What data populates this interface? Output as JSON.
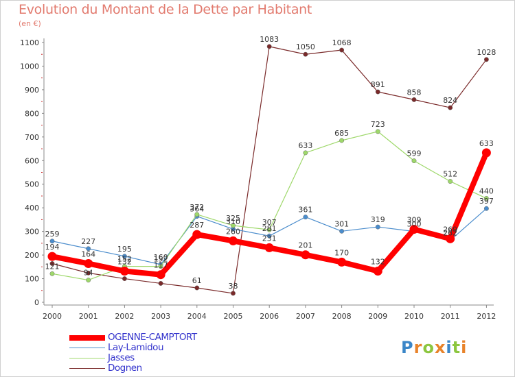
{
  "title": "Evolution du Montant de la Dette par Habitant",
  "unit_label": "(en €)",
  "logo": {
    "text": "Proxiti",
    "letter_colors": [
      "#3a86c8",
      "#e8832a",
      "#8cc63f",
      "#e8832a",
      "#3a86c8",
      "#8cc63f",
      "#e8832a"
    ]
  },
  "chart_data": {
    "type": "line",
    "title": "Evolution du Montant de la Dette par Habitant",
    "ylabel": "(en €)",
    "xlabel": "",
    "categories": [
      "2000",
      "2001",
      "2002",
      "2003",
      "2004",
      "2005",
      "2006",
      "2007",
      "2008",
      "2009",
      "2010",
      "2011",
      "2012"
    ],
    "ylim": [
      0,
      1100
    ],
    "yticks": [
      0,
      100,
      200,
      300,
      400,
      500,
      600,
      700,
      800,
      900,
      1000,
      1100
    ],
    "grid": false,
    "legend_position": "bottom-left",
    "series": [
      {
        "name": "Dognen",
        "color": "#7a2a2a",
        "values": [
          164,
          124,
          100,
          80,
          61,
          38,
          1083,
          1050,
          1068,
          891,
          858,
          824,
          1028
        ],
        "labels": [
          "",
          "",
          "",
          "",
          "61",
          "38",
          "1083",
          "1050",
          "1068",
          "891",
          "858",
          "824",
          "1028"
        ]
      },
      {
        "name": "Lay-Lamidou",
        "color": "#4a8ccc",
        "values": [
          259,
          227,
          195,
          160,
          364,
          310,
          281,
          361,
          301,
          319,
          300,
          262,
          397
        ],
        "labels": [
          "259",
          "227",
          "195",
          "160",
          "364",
          "310",
          "281",
          "361",
          "301",
          "319",
          "300",
          "262",
          "397"
        ]
      },
      {
        "name": "Jasses",
        "color": "#9ed86a",
        "values": [
          121,
          94,
          152,
          152,
          372,
          325,
          307,
          633,
          685,
          723,
          599,
          512,
          440
        ],
        "labels": [
          "121",
          "94",
          "152",
          "152",
          "372",
          "325",
          "307",
          "633",
          "685",
          "723",
          "599",
          "512",
          "440"
        ]
      },
      {
        "name": "OGENNE-CAMPTORT",
        "color": "#ff0000",
        "values": [
          194,
          164,
          132,
          117,
          287,
          260,
          231,
          201,
          170,
          132,
          309,
          269,
          633
        ],
        "labels": [
          "194",
          "164",
          "132",
          "117",
          "287",
          "260",
          "231",
          "201",
          "170",
          "132",
          "309",
          "269",
          "633"
        ]
      }
    ]
  }
}
